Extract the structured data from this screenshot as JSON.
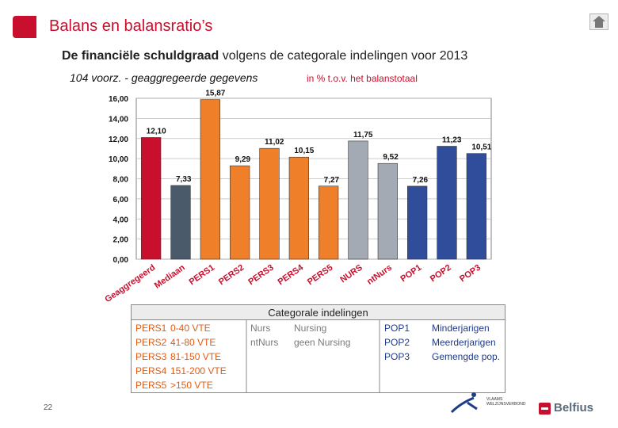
{
  "header": {
    "title": "Balans en balansratio’s",
    "subtitle_bold": "De financiële schuldgraad",
    "subtitle_rest": " volgens de categorale indelingen voor 2013"
  },
  "chart_data": {
    "type": "bar",
    "title": "104 voorz. - geaggregeerde gegevens",
    "unit_note": "in % t.o.v. het balanstotaal",
    "categories": [
      "Geaggregeerd",
      "Mediaan",
      "PERS1",
      "PERS2",
      "PERS3",
      "PERS4",
      "PERS5",
      "NURS",
      "ntNurs",
      "POP1",
      "POP2",
      "POP3"
    ],
    "values": [
      12.1,
      7.33,
      15.87,
      9.29,
      11.02,
      10.15,
      7.27,
      11.75,
      9.52,
      7.26,
      11.23,
      10.51
    ],
    "value_labels": [
      "12,10",
      "7,33",
      "15,87",
      "9,29",
      "11,02",
      "10,15",
      "7,27",
      "11,75",
      "9,52",
      "7,26",
      "11,23",
      "10,51"
    ],
    "colors": [
      "#c8102e",
      "#4a5a6a",
      "#f07f2a",
      "#f07f2a",
      "#f07f2a",
      "#f07f2a",
      "#f07f2a",
      "#a3aab3",
      "#a3aab3",
      "#2f4d9a",
      "#2f4d9a",
      "#2f4d9a"
    ],
    "ylim": [
      0,
      16
    ],
    "yticks": [
      0,
      2,
      4,
      6,
      8,
      10,
      12,
      14,
      16
    ],
    "ytick_labels": [
      "0,00",
      "2,00",
      "4,00",
      "6,00",
      "8,00",
      "10,00",
      "12,00",
      "14,00",
      "16,00"
    ],
    "xlabel": "",
    "ylabel": ""
  },
  "categories_table": {
    "heading": "Categorale indelingen",
    "pers": [
      {
        "code": "PERS1",
        "desc": "0-40 VTE"
      },
      {
        "code": "PERS2",
        "desc": "41-80 VTE"
      },
      {
        "code": "PERS3",
        "desc": "81-150 VTE"
      },
      {
        "code": "PERS4",
        "desc": "151-200 VTE"
      },
      {
        "code": "PERS5",
        "desc": ">150 VTE"
      }
    ],
    "nurs": [
      {
        "code": "Nurs",
        "desc": "Nursing"
      },
      {
        "code": "ntNurs",
        "desc": "geen Nursing"
      }
    ],
    "pop": [
      {
        "code": "POP1",
        "desc": "Minderjarigen"
      },
      {
        "code": "POP2",
        "desc": "Meerderjarigen"
      },
      {
        "code": "POP3",
        "desc": "Gemengde pop."
      }
    ],
    "colors": {
      "pers": "#e35a12",
      "nurs": "#7a7a7a",
      "pop": "#1f3b8a",
      "border": "#888888",
      "header_bg": "#ececec"
    }
  },
  "footer": {
    "page_number": "22",
    "brand": "Belfius",
    "partner_line1": "VLAAMS",
    "partner_line2": "WELZIJNSVERBOND"
  }
}
